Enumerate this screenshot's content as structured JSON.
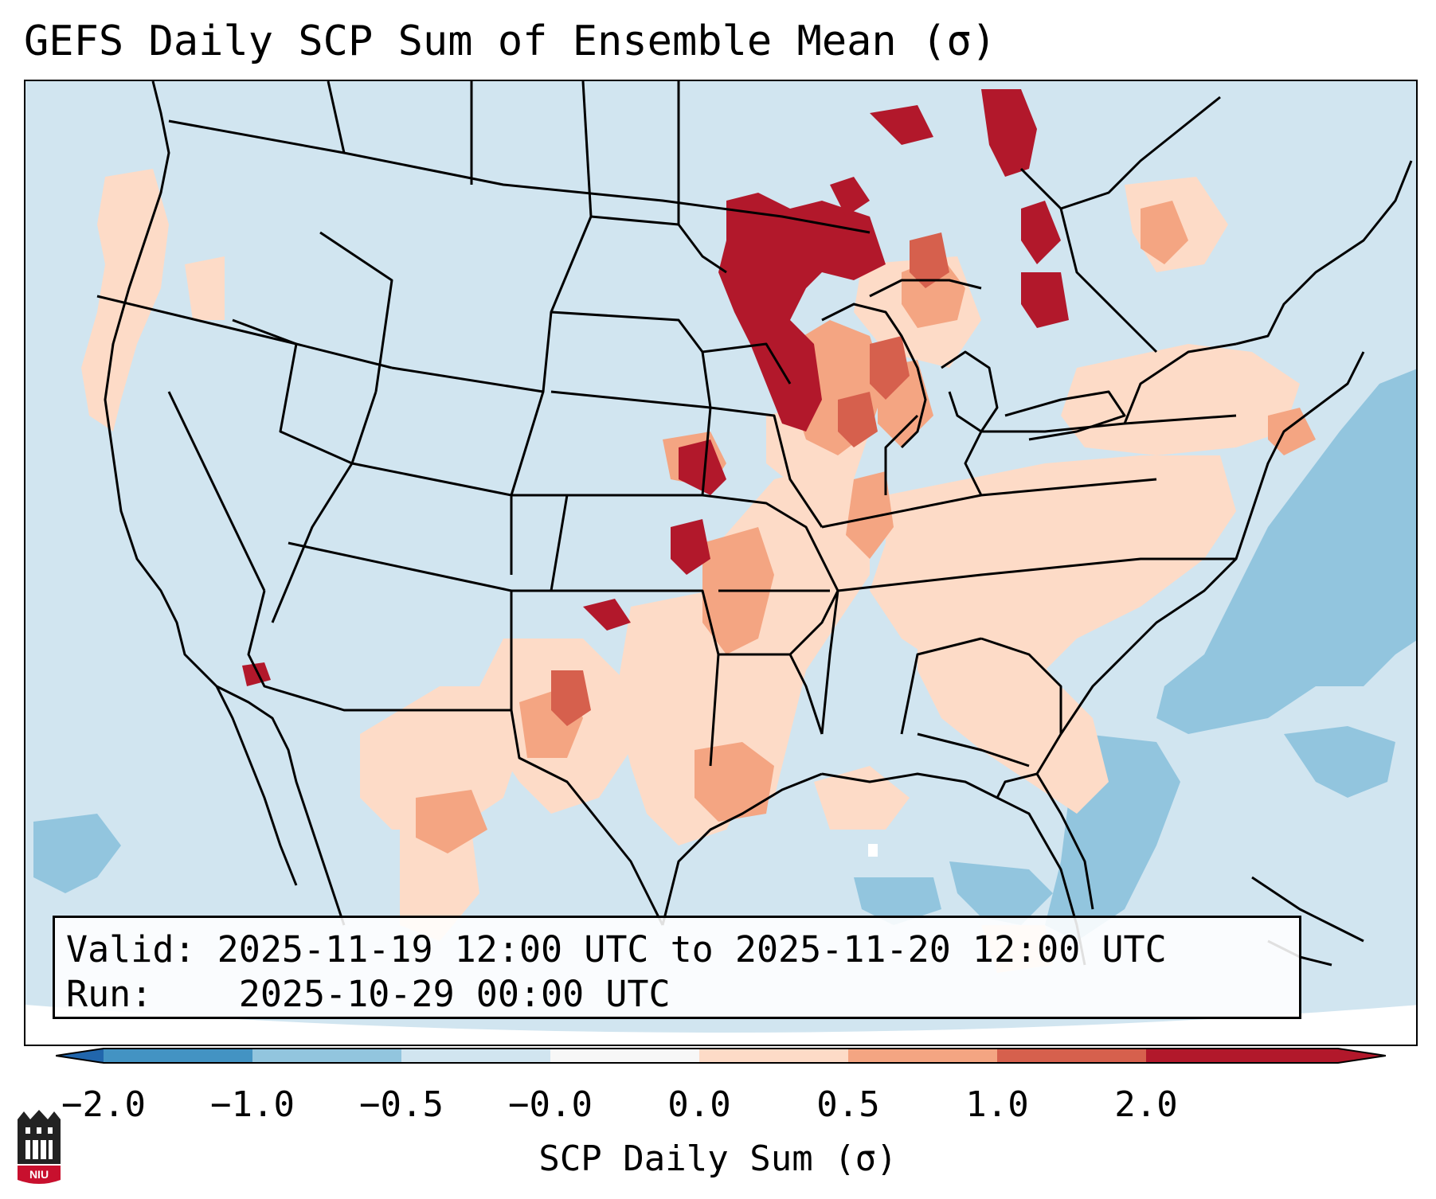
{
  "title": "GEFS Daily SCP Sum of Ensemble Mean (σ)",
  "info": {
    "valid_label": "Valid:",
    "valid_value": "2025-11-19 12:00 UTC to 2025-11-20 12:00 UTC",
    "run_label": "Run:",
    "run_value": "2025-10-29 00:00 UTC"
  },
  "colorbar": {
    "label": "SCP Daily Sum (σ)",
    "ticks": [
      "−2.0",
      "−1.0",
      "−0.5",
      "−0.0",
      "0.0",
      "0.5",
      "1.0",
      "2.0"
    ],
    "colors": [
      "#4393c3",
      "#92c5de",
      "#d1e5f0",
      "#f7f7f7",
      "#fddbc7",
      "#f4a582",
      "#d6604d",
      "#b2182b"
    ],
    "extend_low_color": "#2166ac",
    "extend_high_color": "#b2182b"
  },
  "legend_colors": {
    "ocean_low": "#92c5de",
    "background": "#d1e5f0",
    "light_positive": "#fddbc7",
    "moderate_positive": "#f4a582",
    "high_positive": "#d6604d",
    "extreme_positive": "#b2182b"
  },
  "logo": {
    "text": "NIU"
  }
}
